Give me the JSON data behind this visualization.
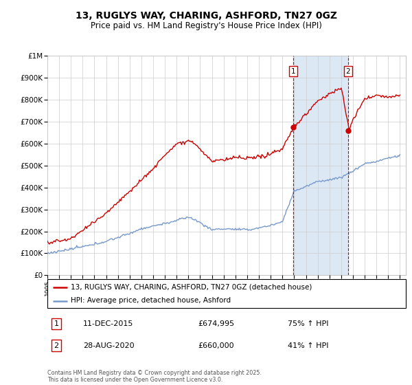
{
  "title": "13, RUGLYS WAY, CHARING, ASHFORD, TN27 0GZ",
  "subtitle": "Price paid vs. HM Land Registry's House Price Index (HPI)",
  "ylim": [
    0,
    1000000
  ],
  "yticks": [
    0,
    100000,
    200000,
    300000,
    400000,
    500000,
    600000,
    700000,
    800000,
    900000,
    1000000
  ],
  "ytick_labels": [
    "£0",
    "£100K",
    "£200K",
    "£300K",
    "£400K",
    "£500K",
    "£600K",
    "£700K",
    "£800K",
    "£900K",
    "£1M"
  ],
  "transaction1_date": "11-DEC-2015",
  "transaction1_price": "£674,995",
  "transaction1_pct": "75% ↑ HPI",
  "transaction1_year": 2015.92,
  "transaction1_value": 674995,
  "transaction2_date": "28-AUG-2020",
  "transaction2_price": "£660,000",
  "transaction2_pct": "41% ↑ HPI",
  "transaction2_year": 2020.58,
  "transaction2_value": 660000,
  "legend_label_red": "13, RUGLYS WAY, CHARING, ASHFORD, TN27 0GZ (detached house)",
  "legend_label_blue": "HPI: Average price, detached house, Ashford",
  "footer": "Contains HM Land Registry data © Crown copyright and database right 2025.\nThis data is licensed under the Open Government Licence v3.0.",
  "red_color": "#cc0000",
  "blue_color": "#7799cc",
  "shade_color": "#dde8f5",
  "grid_color": "#cccccc",
  "bg_color": "#ffffff",
  "start_year": 1995,
  "end_year": 2025
}
